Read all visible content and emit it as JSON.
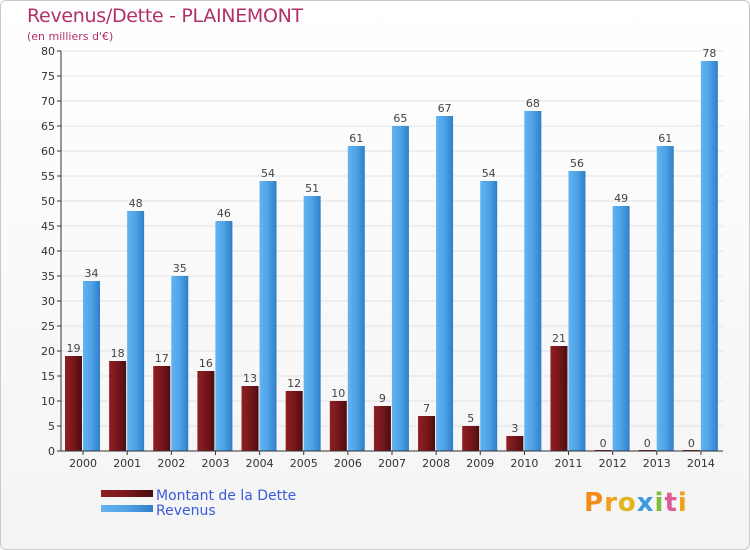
{
  "header": {
    "title": "Revenus/Dette - PLAINEMONT",
    "subtitle": "(en milliers d'€)"
  },
  "logo": {
    "text": "Proxiti"
  },
  "colors": {
    "dette": "#6e1518",
    "revenus": "#4fa3e6",
    "axis": "#333333",
    "grid": "#e2e2e2",
    "legend_text": "#3b5bdb"
  },
  "chart_data": {
    "type": "bar",
    "title": "Revenus/Dette - PLAINEMONT",
    "subtitle": "(en milliers d'€)",
    "xlabel": "",
    "ylabel": "",
    "ylim": [
      0,
      80
    ],
    "yticks": [
      0,
      5,
      10,
      15,
      20,
      25,
      30,
      35,
      40,
      45,
      50,
      55,
      60,
      65,
      70,
      75,
      80
    ],
    "grid": true,
    "legend_position": "bottom-left",
    "categories": [
      "2000",
      "2001",
      "2002",
      "2003",
      "2004",
      "2005",
      "2006",
      "2007",
      "2008",
      "2009",
      "2010",
      "2011",
      "2012",
      "2013",
      "2014"
    ],
    "series": [
      {
        "name": "Montant de la Dette",
        "values": [
          19,
          18,
          17,
          16,
          13,
          12,
          10,
          9,
          7,
          5,
          3,
          21,
          0,
          0,
          0
        ]
      },
      {
        "name": "Revenus",
        "values": [
          34,
          48,
          35,
          46,
          54,
          51,
          61,
          65,
          67,
          54,
          68,
          56,
          49,
          61,
          78
        ]
      }
    ]
  }
}
